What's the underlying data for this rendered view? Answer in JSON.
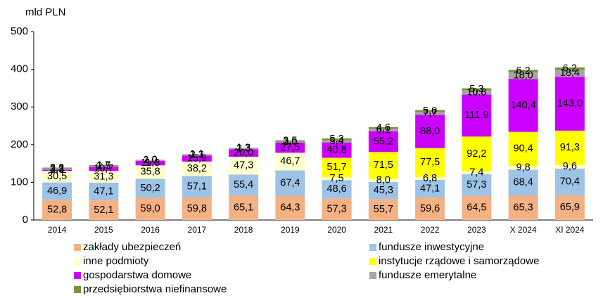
{
  "chart_data": {
    "type": "bar",
    "stacked": true,
    "y_axis_label": "mld PLN",
    "categories": [
      "2014",
      "2015",
      "2016",
      "2017",
      "2018",
      "2019",
      "2020",
      "2021",
      "2022",
      "2023",
      "X 2024",
      "XI 2024"
    ],
    "ylim": [
      0,
      500
    ],
    "yticks": [
      0,
      100,
      200,
      300,
      400,
      500
    ],
    "series": [
      {
        "name": "zakłady ubezpieczeń",
        "color": "#f4b183",
        "values": [
          52.8,
          52.1,
          59.0,
          59.8,
          65.1,
          64.3,
          57.3,
          55.7,
          59.6,
          64.5,
          65.3,
          65.9
        ],
        "value_labels": [
          "52,8",
          "52,1",
          "59,0",
          "59,8",
          "65,1",
          "64,3",
          "57,3",
          "55,7",
          "59,6",
          "64,5",
          "65,3",
          "65,9"
        ]
      },
      {
        "name": "fundusze inwestycyjne",
        "color": "#9dc3e6",
        "values": [
          46.9,
          47.1,
          50.2,
          57.1,
          55.4,
          67.4,
          48.6,
          45.3,
          47.1,
          57.3,
          68.4,
          70.4
        ],
        "value_labels": [
          "46,9",
          "47,1",
          "50,2",
          "57,1",
          "55,4",
          "67,4",
          "48,6",
          "45,3",
          "47,1",
          "57,3",
          "68,4",
          "70,4"
        ]
      },
      {
        "name": "inne podmioty",
        "color": "#ffffcc",
        "values": [
          30.5,
          31.3,
          35.8,
          38.2,
          47.3,
          46.7,
          7.5,
          8.0,
          6.8,
          7.4,
          9.8,
          9.6
        ],
        "value_labels": [
          "30,5",
          "31,3",
          "35,8",
          "38,2",
          "47,3",
          "46,7",
          "7,5",
          "8,0",
          "6,8",
          "7,4",
          "9,8",
          "9,6"
        ]
      },
      {
        "name": "instytucje rządowe i samorządowe",
        "color": "#ffff00",
        "values": [
          null,
          null,
          null,
          null,
          null,
          null,
          51.7,
          71.5,
          77.5,
          92.2,
          90.4,
          91.3
        ],
        "value_labels": [
          null,
          null,
          null,
          null,
          null,
          null,
          "51,7",
          "71,5",
          "77,5",
          "92,2",
          "90,4",
          "91,3"
        ]
      },
      {
        "name": "gospodarstwa domowe",
        "color": "#cc00ff",
        "values": [
          3.3,
          10.7,
          11.8,
          15.9,
          20.0,
          27.5,
          40.8,
          55.2,
          88.0,
          111.9,
          140.4,
          143.0
        ],
        "value_labels": [
          "3,3",
          "10,7",
          "11,8",
          "15,9",
          "20,0",
          "27,5",
          "40,8",
          "55,2",
          "88,0",
          "111,9",
          "140,4",
          "143,0"
        ]
      },
      {
        "name": "fundusze emerytalne",
        "color": "#a6a6a6",
        "values": [
          3.3,
          2.5,
          2.0,
          2.3,
          2.3,
          2.0,
          5.4,
          6.1,
          7.7,
          10.8,
          18.0,
          18.4
        ],
        "value_labels": [
          "3,3",
          "2,5",
          "2,0",
          "2,3",
          "2,3",
          "2,0",
          "5,4",
          "6,1",
          "7,7",
          "10,8",
          "18,0",
          "18,4"
        ]
      },
      {
        "name": "przedsiębiorstwa niefinansowe",
        "color": "#77933c",
        "values": [
          2.2,
          1.7,
          1.0,
          1.1,
          1.3,
          3.5,
          5.3,
          4.6,
          5.0,
          5.3,
          6.2,
          6.2
        ],
        "value_labels": [
          "2,2",
          "1,7",
          "1,0",
          "1,1",
          "1,3",
          "3,5",
          "5,3",
          "4,6",
          "5,0",
          "5,3",
          "6,2",
          "6,2"
        ]
      }
    ]
  }
}
